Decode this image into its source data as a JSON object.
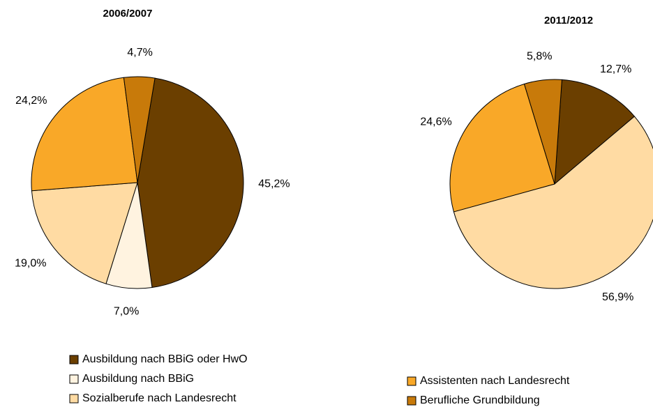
{
  "chart_data": [
    {
      "type": "pie",
      "title": "2006/2007",
      "categories": [
        "Ausbildung nach BBiG oder HwO",
        "Ausbildung nach BBiG",
        "Sozialberufe nach Landesrecht",
        "Assistenten nach Landesrecht",
        "Berufliche Grundbildung"
      ],
      "values": [
        45.2,
        7.0,
        19.0,
        24.2,
        4.7
      ],
      "value_labels": [
        "45,2%",
        "7,0%",
        "19,0%",
        "24,2%",
        "4,7%"
      ],
      "colors": [
        "#6b3f00",
        "#fff3e0",
        "#ffdba3",
        "#f9a828",
        "#c87a0a"
      ]
    },
    {
      "type": "pie",
      "title": "2011/2012",
      "categories": [
        "Ausbildung nach BBiG oder HwO",
        "Sozialberufe nach Landesrecht",
        "Assistenten nach Landesrecht",
        "Berufliche Grundbildung"
      ],
      "values": [
        12.7,
        56.9,
        24.6,
        5.8
      ],
      "value_labels": [
        "12,7%",
        "56,9%",
        "24,6%",
        "5,8%"
      ],
      "colors": [
        "#6b3f00",
        "#ffdba3",
        "#f9a828",
        "#c87a0a"
      ]
    }
  ]
}
